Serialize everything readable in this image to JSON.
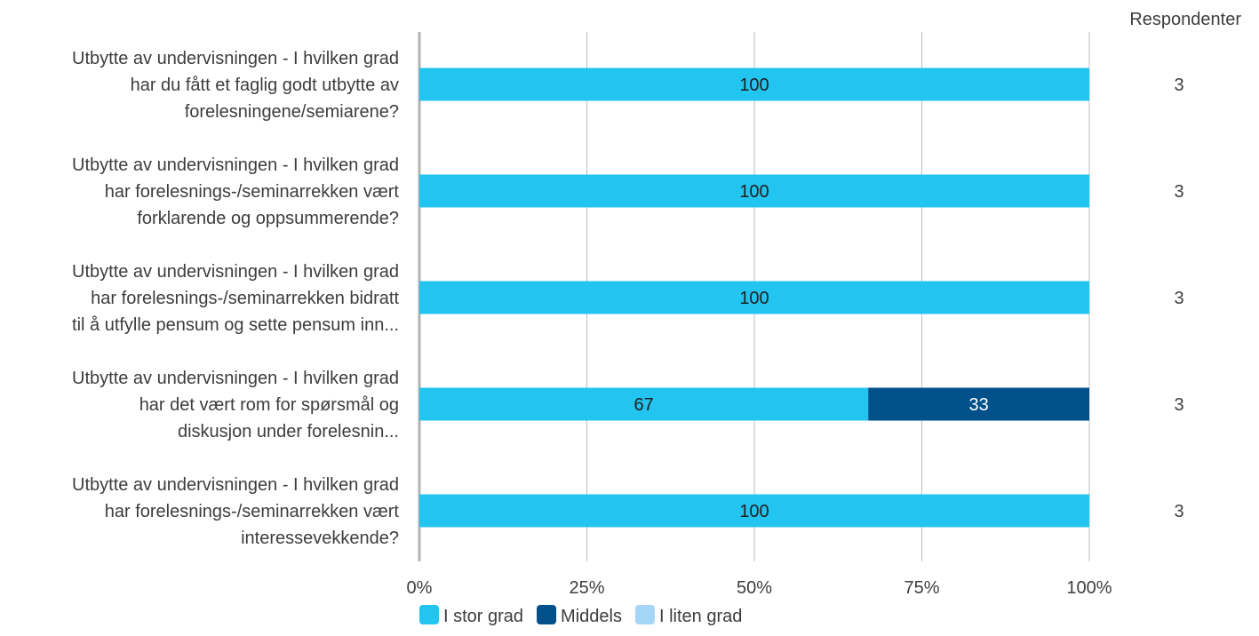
{
  "chart_data": {
    "type": "bar",
    "orientation": "horizontal",
    "stacked": true,
    "categories": [
      "Utbytte av undervisningen - I hvilken grad har du fått et faglig godt utbytte av forelesningene/semiarene?",
      "Utbytte av undervisningen - I hvilken grad har forelesnings-/seminarrekken vært forklarende og oppsummerende?",
      "Utbytte av undervisningen - I hvilken grad har forelesnings-/seminarrekken bidratt til å utfylle pensum og sette pensum inn...",
      "Utbytte av undervisningen - I hvilken grad har det vært rom for spørsmål og diskusjon under forelesnin...",
      "Utbytte av undervisningen - I hvilken grad har forelesnings-/seminarrekken vært interessevekkende?"
    ],
    "category_lines": [
      [
        "Utbytte av undervisningen - I hvilken grad",
        "har du fått et faglig godt utbytte av",
        "forelesningene/semiarene?"
      ],
      [
        "Utbytte av undervisningen - I hvilken grad",
        "har forelesnings-/seminarrekken vært",
        "forklarende og oppsummerende?"
      ],
      [
        "Utbytte av undervisningen - I hvilken grad",
        "har forelesnings-/seminarrekken bidratt",
        "til å utfylle pensum og sette pensum inn..."
      ],
      [
        "Utbytte av undervisningen - I hvilken grad",
        "har det vært rom for spørsmål og",
        "diskusjon under forelesnin..."
      ],
      [
        "Utbytte av undervisningen - I hvilken grad",
        "har forelesnings-/seminarrekken vært",
        "interessevekkende?"
      ]
    ],
    "series": [
      {
        "name": "I stor grad",
        "values": [
          100,
          100,
          100,
          67,
          100
        ],
        "color": "#22c4f0",
        "label_color": "#1f1f1f"
      },
      {
        "name": "Middels",
        "values": [
          0,
          0,
          0,
          33,
          0
        ],
        "color": "#00508a",
        "label_color": "#ffffff"
      },
      {
        "name": "I liten grad",
        "values": [
          0,
          0,
          0,
          0,
          0
        ],
        "color": "#a6d6f7",
        "label_color": "#1f1f1f"
      }
    ],
    "xlim": [
      0,
      100
    ],
    "x_ticks": [
      "0%",
      "25%",
      "50%",
      "75%",
      "100%"
    ],
    "grid": true,
    "legend_position": "bottom",
    "respondents_header": "Respondenter",
    "respondents": [
      3,
      3,
      3,
      3,
      3
    ]
  }
}
